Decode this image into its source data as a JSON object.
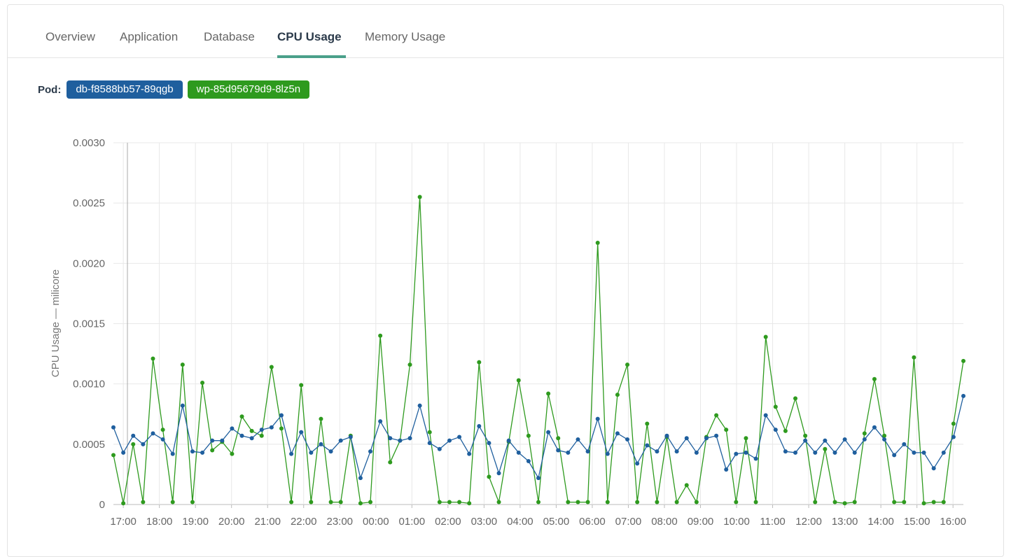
{
  "tabs": [
    {
      "label": "Overview",
      "active": false
    },
    {
      "label": "Application",
      "active": false
    },
    {
      "label": "Database",
      "active": false
    },
    {
      "label": "CPU Usage",
      "active": true
    },
    {
      "label": "Memory Usage",
      "active": false
    }
  ],
  "pods": {
    "label": "Pod:",
    "items": [
      {
        "name": "db-f8588bb57-89qgb",
        "color": "#1f5f9e"
      },
      {
        "name": "wp-85d95679d9-8lz5n",
        "color": "#2e9a1e"
      }
    ]
  },
  "chart_data": {
    "type": "line",
    "ylabel": "CPU Usage — milicore",
    "ylim": [
      0,
      0.003
    ],
    "yticks": [
      "0",
      "0.0005",
      "0.0010",
      "0.0015",
      "0.0020",
      "0.0025",
      "0.0030"
    ],
    "xticks": [
      "17:00",
      "18:00",
      "19:00",
      "20:00",
      "21:00",
      "22:00",
      "23:00",
      "00:00",
      "01:00",
      "02:00",
      "03:00",
      "04:00",
      "05:00",
      "06:00",
      "07:00",
      "08:00",
      "09:00",
      "10:00",
      "11:00",
      "12:00",
      "13:00",
      "14:00",
      "15:00",
      "16:00"
    ],
    "grid": true,
    "series": [
      {
        "name": "db-f8588bb57-89qgb",
        "color": "#1f5f9e",
        "values": [
          0.00064,
          0.00043,
          0.00057,
          0.0005,
          0.00059,
          0.00054,
          0.00042,
          0.00082,
          0.00044,
          0.00043,
          0.00053,
          0.00053,
          0.00063,
          0.00057,
          0.00055,
          0.00062,
          0.00064,
          0.00074,
          0.00042,
          0.0006,
          0.00043,
          0.0005,
          0.00044,
          0.00053,
          0.00056,
          0.00022,
          0.00044,
          0.00069,
          0.00055,
          0.00053,
          0.00055,
          0.00082,
          0.00051,
          0.00046,
          0.00053,
          0.00056,
          0.00042,
          0.00065,
          0.00051,
          0.00026,
          0.00053,
          0.00043,
          0.00036,
          0.00022,
          0.0006,
          0.00045,
          0.00043,
          0.00054,
          0.00044,
          0.00071,
          0.00042,
          0.00059,
          0.00054,
          0.00034,
          0.00049,
          0.00044,
          0.00057,
          0.00044,
          0.00055,
          0.00043,
          0.00055,
          0.00057,
          0.00029,
          0.00042,
          0.00043,
          0.00038,
          0.00074,
          0.00062,
          0.00044,
          0.00043,
          0.00053,
          0.00043,
          0.00053,
          0.00043,
          0.00054,
          0.00043,
          0.00054,
          0.00064,
          0.00054,
          0.00041,
          0.0005,
          0.00043,
          0.00043,
          0.0003,
          0.00043,
          0.00056,
          0.0009
        ]
      },
      {
        "name": "wp-85d95679d9-8lz5n",
        "color": "#2e9a1e",
        "values": [
          0.00041,
          1e-05,
          0.0005,
          2e-05,
          0.00121,
          0.00062,
          2e-05,
          0.00116,
          2e-05,
          0.00101,
          0.00045,
          0.00052,
          0.00042,
          0.00073,
          0.00061,
          0.00057,
          0.00114,
          0.00063,
          2e-05,
          0.00099,
          2e-05,
          0.00071,
          2e-05,
          2e-05,
          0.00057,
          1e-05,
          2e-05,
          0.0014,
          0.00035,
          0.00053,
          0.00116,
          0.00255,
          0.0006,
          2e-05,
          2e-05,
          2e-05,
          1e-05,
          0.00118,
          0.00023,
          2e-05,
          0.00052,
          0.00103,
          0.00057,
          2e-05,
          0.00092,
          0.00055,
          2e-05,
          2e-05,
          2e-05,
          0.00217,
          2e-05,
          0.00091,
          0.00116,
          2e-05,
          0.00067,
          2e-05,
          0.00056,
          2e-05,
          0.00016,
          2e-05,
          0.00056,
          0.00074,
          0.00062,
          2e-05,
          0.00055,
          2e-05,
          0.00139,
          0.00081,
          0.00061,
          0.00088,
          0.00057,
          2e-05,
          0.00046,
          2e-05,
          1e-05,
          2e-05,
          0.00059,
          0.00104,
          0.00057,
          2e-05,
          2e-05,
          0.00122,
          1e-05,
          2e-05,
          2e-05,
          0.00067,
          0.00119
        ]
      }
    ]
  }
}
